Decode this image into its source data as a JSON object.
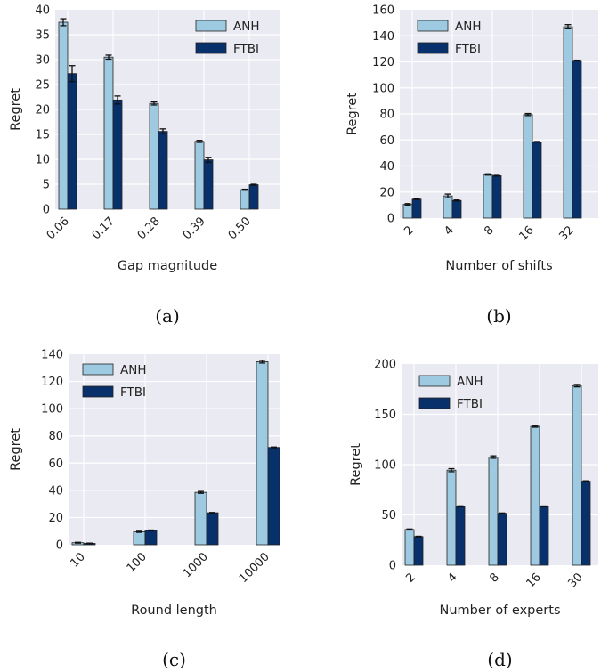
{
  "colors": {
    "plot_bg": "#eaeaf2",
    "grid": "#ffffff",
    "anh": "#9ecae1",
    "ftbi": "#08306b",
    "edge": "#222222",
    "error_bar": "#111111"
  },
  "chart_data": [
    {
      "type": "bar",
      "panel_label": "(a)",
      "title": "",
      "xlabel": "Gap magnitude",
      "ylabel": "Regret",
      "categories": [
        "0.06",
        "0.17",
        "0.28",
        "0.39",
        "0.50"
      ],
      "ylim": [
        0,
        40
      ],
      "yticks": [
        0,
        5,
        10,
        15,
        20,
        25,
        30,
        35,
        40
      ],
      "grid": true,
      "legend_position": "top-right",
      "series": [
        {
          "name": "ANH",
          "values": [
            37.5,
            30.5,
            21.2,
            13.6,
            3.9
          ],
          "errors": [
            0.7,
            0.4,
            0.3,
            0.2,
            0.1
          ]
        },
        {
          "name": "FTBI",
          "values": [
            27.2,
            21.9,
            15.6,
            9.9,
            4.9
          ],
          "errors": [
            1.6,
            0.8,
            0.5,
            0.5,
            0.1
          ]
        }
      ]
    },
    {
      "type": "bar",
      "panel_label": "(b)",
      "title": "",
      "xlabel": "Number of shifts",
      "ylabel": "Regret",
      "categories": [
        "2",
        "4",
        "8",
        "16",
        "32"
      ],
      "ylim": [
        0,
        160
      ],
      "yticks": [
        0,
        20,
        40,
        60,
        80,
        100,
        120,
        140,
        160
      ],
      "grid": true,
      "legend_position": "top-left",
      "series": [
        {
          "name": "ANH",
          "values": [
            10.5,
            17.0,
            33.5,
            79.5,
            147.0
          ],
          "errors": [
            0.6,
            1.4,
            0.5,
            0.8,
            1.6
          ]
        },
        {
          "name": "FTBI",
          "values": [
            14.5,
            13.5,
            32.5,
            58.5,
            121.0
          ],
          "errors": [
            0.3,
            0.4,
            0.3,
            0.3,
            0.3
          ]
        }
      ]
    },
    {
      "type": "bar",
      "panel_label": "(c)",
      "title": "",
      "xlabel": "Round length",
      "ylabel": "Regret",
      "categories": [
        "10",
        "100",
        "1000",
        "10000"
      ],
      "ylim": [
        0,
        140
      ],
      "yticks": [
        0,
        20,
        40,
        60,
        80,
        100,
        120,
        140
      ],
      "grid": true,
      "legend_position": "top-left",
      "series": [
        {
          "name": "ANH",
          "values": [
            1.5,
            9.5,
            38.5,
            134.5
          ],
          "errors": [
            0.3,
            0.4,
            0.7,
            1.0
          ]
        },
        {
          "name": "FTBI",
          "values": [
            1.0,
            10.5,
            23.5,
            71.5
          ],
          "errors": [
            0.2,
            0.3,
            0.2,
            0.3
          ]
        }
      ]
    },
    {
      "type": "bar",
      "panel_label": "(d)",
      "title": "",
      "xlabel": "Number of experts",
      "ylabel": "Regret",
      "categories": [
        "2",
        "4",
        "8",
        "16",
        "30"
      ],
      "ylim": [
        0,
        200
      ],
      "yticks": [
        0,
        50,
        100,
        150,
        200
      ],
      "grid": true,
      "legend_position": "top-left",
      "series": [
        {
          "name": "ANH",
          "values": [
            35.5,
            94.5,
            107.5,
            138.0,
            178.5
          ],
          "errors": [
            0.5,
            1.5,
            1.2,
            0.8,
            1.2
          ]
        },
        {
          "name": "FTBI",
          "values": [
            28.5,
            58.5,
            51.5,
            58.5,
            83.5
          ],
          "errors": [
            0.3,
            0.5,
            0.4,
            0.4,
            0.4
          ]
        }
      ]
    }
  ]
}
